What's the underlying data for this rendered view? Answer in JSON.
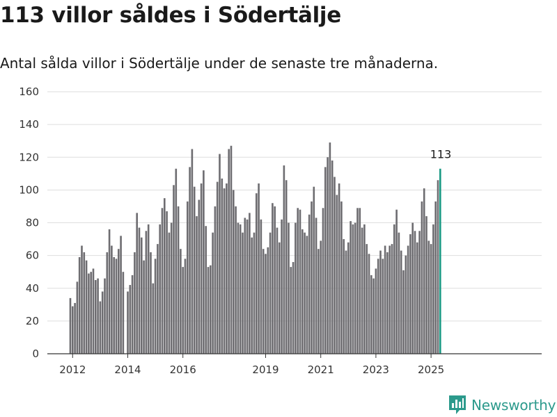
{
  "title": "113 villor såldes i Södertälje",
  "subtitle": "Antal sålda villor i Södertälje under de senaste tre månaderna.",
  "brand": "Newsworthy",
  "colors": {
    "bar": "#6d6c70",
    "highlight": "#1a9984",
    "grid": "#dedede",
    "brand": "#2c9a8c"
  },
  "chart_data": {
    "type": "bar",
    "title": "113 villor såldes i Södertälje",
    "subtitle": "Antal sålda villor i Södertälje under de senaste tre månaderna.",
    "xlabel": "",
    "ylabel": "",
    "ylim": [
      0,
      160
    ],
    "y_ticks": [
      0,
      20,
      40,
      60,
      80,
      100,
      120,
      140,
      160
    ],
    "x_ticks": [
      {
        "label": "2012",
        "date": "2012-01"
      },
      {
        "label": "2014",
        "date": "2014-01"
      },
      {
        "label": "2016",
        "date": "2016-01"
      },
      {
        "label": "2019",
        "date": "2019-01"
      },
      {
        "label": "2021",
        "date": "2021-01"
      },
      {
        "label": "2023",
        "date": "2023-01"
      },
      {
        "label": "2025",
        "date": "2025-01"
      }
    ],
    "grid": "horizontal",
    "start_date": "2011-12",
    "frequency": "monthly",
    "highlight_last": true,
    "last_value_label": "113",
    "values": [
      34,
      29,
      31,
      44,
      59,
      66,
      62,
      57,
      49,
      50,
      52,
      45,
      46,
      32,
      38,
      46,
      62,
      76,
      66,
      59,
      58,
      64,
      72,
      50,
      0,
      38,
      42,
      48,
      62,
      86,
      77,
      71,
      57,
      75,
      79,
      62,
      43,
      58,
      67,
      79,
      89,
      95,
      87,
      74,
      80,
      103,
      113,
      90,
      64,
      53,
      58,
      93,
      114,
      125,
      102,
      84,
      94,
      104,
      112,
      78,
      53,
      54,
      74,
      90,
      105,
      122,
      107,
      101,
      104,
      125,
      127,
      100,
      90,
      80,
      79,
      74,
      83,
      82,
      86,
      71,
      74,
      98,
      104,
      82,
      64,
      61,
      65,
      74,
      92,
      90,
      77,
      68,
      82,
      115,
      106,
      80,
      53,
      56,
      80,
      89,
      88,
      76,
      74,
      72,
      85,
      93,
      102,
      83,
      64,
      69,
      89,
      114,
      120,
      129,
      118,
      108,
      97,
      104,
      93,
      70,
      63,
      68,
      81,
      79,
      80,
      89,
      89,
      77,
      79,
      67,
      61,
      48,
      46,
      52,
      58,
      63,
      58,
      66,
      62,
      66,
      67,
      79,
      88,
      74,
      63,
      51,
      60,
      66,
      73,
      80,
      75,
      68,
      75,
      93,
      101,
      84,
      69,
      67,
      79,
      93,
      106,
      113
    ]
  }
}
